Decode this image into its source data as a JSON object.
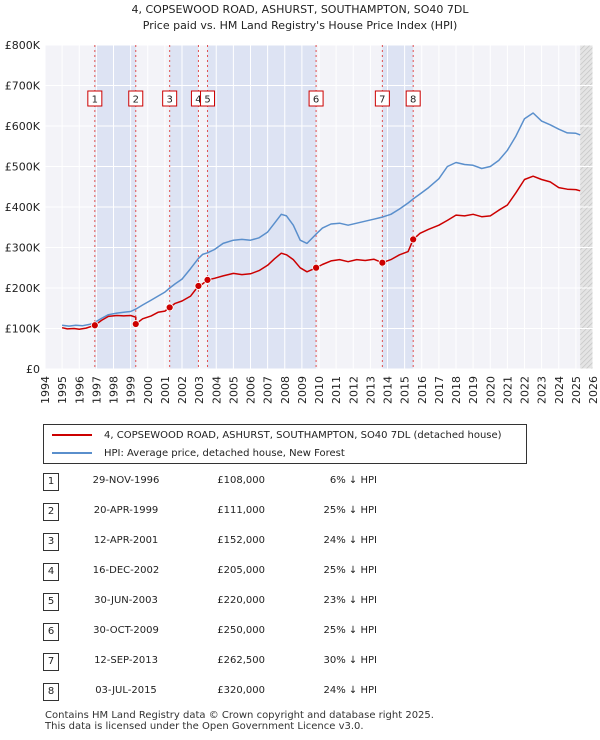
{
  "chart_data": {
    "type": "line",
    "title": "4, COPSEWOOD ROAD, ASHURST, SOUTHAMPTON, SO40 7DL",
    "subtitle": "Price paid vs. HM Land Registry's House Price Index (HPI)",
    "xlabel": "",
    "ylabel": "",
    "xlim": [
      1994,
      2026
    ],
    "ylim": [
      0,
      800000
    ],
    "x_ticks": [
      "1994",
      "1995",
      "1996",
      "1997",
      "1998",
      "1999",
      "2000",
      "2001",
      "2002",
      "2003",
      "2004",
      "2005",
      "2006",
      "2007",
      "2008",
      "2009",
      "2010",
      "2011",
      "2012",
      "2013",
      "2014",
      "2015",
      "2016",
      "2017",
      "2018",
      "2019",
      "2020",
      "2021",
      "2022",
      "2023",
      "2024",
      "2025",
      "2026"
    ],
    "y_ticks": [
      {
        "value": 0,
        "label": "£0"
      },
      {
        "value": 100000,
        "label": "£100K"
      },
      {
        "value": 200000,
        "label": "£200K"
      },
      {
        "value": 300000,
        "label": "£300K"
      },
      {
        "value": 400000,
        "label": "£400K"
      },
      {
        "value": 500000,
        "label": "£500K"
      },
      {
        "value": 600000,
        "label": "£600K"
      },
      {
        "value": 700000,
        "label": "£700K"
      },
      {
        "value": 800000,
        "label": "£800K"
      }
    ],
    "grid": true,
    "series": [
      {
        "name": "4, COPSEWOOD ROAD, ASHURST, SOUTHAMPTON, SO40 7DL (detached house)",
        "color": "#cc0000",
        "points": [
          [
            1995.0,
            102000
          ],
          [
            1995.3,
            99000
          ],
          [
            1995.7,
            100000
          ],
          [
            1996.0,
            98000
          ],
          [
            1996.4,
            101000
          ],
          [
            1996.91,
            108000
          ],
          [
            1997.3,
            120000
          ],
          [
            1997.7,
            130000
          ],
          [
            1998.2,
            132000
          ],
          [
            1998.6,
            131000
          ],
          [
            1999.0,
            132000
          ],
          [
            1999.3,
            128000
          ],
          [
            1999.3,
            111000
          ],
          [
            1999.7,
            124000
          ],
          [
            2000.2,
            131000
          ],
          [
            2000.6,
            140000
          ],
          [
            2001.0,
            143000
          ],
          [
            2001.28,
            152000
          ],
          [
            2001.6,
            162000
          ],
          [
            2002.0,
            168000
          ],
          [
            2002.5,
            180000
          ],
          [
            2002.96,
            205000
          ],
          [
            2003.2,
            210000
          ],
          [
            2003.49,
            220000
          ],
          [
            2003.9,
            224000
          ],
          [
            2004.4,
            230000
          ],
          [
            2005.0,
            236000
          ],
          [
            2005.5,
            233000
          ],
          [
            2006.0,
            235000
          ],
          [
            2006.5,
            243000
          ],
          [
            2007.0,
            256000
          ],
          [
            2007.4,
            272000
          ],
          [
            2007.8,
            286000
          ],
          [
            2008.1,
            282000
          ],
          [
            2008.5,
            270000
          ],
          [
            2008.9,
            250000
          ],
          [
            2009.3,
            240000
          ],
          [
            2009.83,
            250000
          ],
          [
            2010.2,
            258000
          ],
          [
            2010.7,
            267000
          ],
          [
            2011.2,
            270000
          ],
          [
            2011.7,
            265000
          ],
          [
            2012.2,
            270000
          ],
          [
            2012.7,
            268000
          ],
          [
            2013.2,
            271000
          ],
          [
            2013.7,
            262500
          ],
          [
            2014.2,
            270000
          ],
          [
            2014.7,
            282000
          ],
          [
            2015.2,
            290000
          ],
          [
            2015.5,
            320000
          ],
          [
            2015.9,
            335000
          ],
          [
            2016.4,
            345000
          ],
          [
            2017.0,
            355000
          ],
          [
            2017.5,
            367000
          ],
          [
            2018.0,
            380000
          ],
          [
            2018.5,
            378000
          ],
          [
            2019.0,
            382000
          ],
          [
            2019.5,
            376000
          ],
          [
            2020.0,
            378000
          ],
          [
            2020.5,
            392000
          ],
          [
            2021.0,
            405000
          ],
          [
            2021.5,
            435000
          ],
          [
            2022.0,
            468000
          ],
          [
            2022.5,
            476000
          ],
          [
            2023.0,
            468000
          ],
          [
            2023.5,
            462000
          ],
          [
            2024.0,
            448000
          ],
          [
            2024.5,
            444000
          ],
          [
            2025.0,
            443000
          ],
          [
            2025.25,
            440000
          ]
        ]
      },
      {
        "name": "HPI: Average price, detached house, New Forest",
        "color": "#5a8fcc",
        "points": [
          [
            1995.0,
            108000
          ],
          [
            1995.4,
            106000
          ],
          [
            1995.8,
            108000
          ],
          [
            1996.2,
            107000
          ],
          [
            1996.6,
            110000
          ],
          [
            1996.91,
            115000
          ],
          [
            1997.3,
            125000
          ],
          [
            1997.7,
            134000
          ],
          [
            1998.2,
            138000
          ],
          [
            1998.6,
            140000
          ],
          [
            1999.0,
            142000
          ],
          [
            1999.3,
            148000
          ],
          [
            1999.7,
            158000
          ],
          [
            2000.2,
            170000
          ],
          [
            2000.6,
            180000
          ],
          [
            2001.0,
            190000
          ],
          [
            2001.28,
            200000
          ],
          [
            2001.6,
            210000
          ],
          [
            2002.0,
            222000
          ],
          [
            2002.5,
            248000
          ],
          [
            2002.96,
            273000
          ],
          [
            2003.2,
            283000
          ],
          [
            2003.49,
            287000
          ],
          [
            2003.9,
            295000
          ],
          [
            2004.4,
            310000
          ],
          [
            2005.0,
            318000
          ],
          [
            2005.5,
            320000
          ],
          [
            2006.0,
            318000
          ],
          [
            2006.5,
            324000
          ],
          [
            2007.0,
            338000
          ],
          [
            2007.4,
            360000
          ],
          [
            2007.8,
            382000
          ],
          [
            2008.1,
            378000
          ],
          [
            2008.5,
            355000
          ],
          [
            2008.9,
            318000
          ],
          [
            2009.3,
            310000
          ],
          [
            2009.83,
            333000
          ],
          [
            2010.2,
            348000
          ],
          [
            2010.7,
            358000
          ],
          [
            2011.2,
            360000
          ],
          [
            2011.7,
            355000
          ],
          [
            2012.2,
            360000
          ],
          [
            2012.7,
            365000
          ],
          [
            2013.2,
            370000
          ],
          [
            2013.7,
            375000
          ],
          [
            2014.2,
            382000
          ],
          [
            2014.7,
            395000
          ],
          [
            2015.2,
            410000
          ],
          [
            2015.5,
            420000
          ],
          [
            2015.9,
            432000
          ],
          [
            2016.4,
            448000
          ],
          [
            2017.0,
            470000
          ],
          [
            2017.5,
            500000
          ],
          [
            2018.0,
            510000
          ],
          [
            2018.5,
            505000
          ],
          [
            2019.0,
            503000
          ],
          [
            2019.5,
            495000
          ],
          [
            2020.0,
            500000
          ],
          [
            2020.5,
            515000
          ],
          [
            2021.0,
            540000
          ],
          [
            2021.5,
            575000
          ],
          [
            2022.0,
            618000
          ],
          [
            2022.5,
            632000
          ],
          [
            2023.0,
            612000
          ],
          [
            2023.5,
            603000
          ],
          [
            2024.0,
            592000
          ],
          [
            2024.5,
            583000
          ],
          [
            2025.0,
            582000
          ],
          [
            2025.25,
            578000
          ]
        ]
      }
    ],
    "sales": [
      {
        "label": "1",
        "year": 1996.91,
        "price": 108000
      },
      {
        "label": "2",
        "year": 1999.3,
        "price": 111000
      },
      {
        "label": "3",
        "year": 2001.28,
        "price": 152000
      },
      {
        "label": "4",
        "year": 2002.96,
        "price": 205000
      },
      {
        "label": "5",
        "year": 2003.49,
        "price": 220000
      },
      {
        "label": "6",
        "year": 2009.83,
        "price": 250000
      },
      {
        "label": "7",
        "year": 2013.7,
        "price": 262500
      },
      {
        "label": "8",
        "year": 2015.5,
        "price": 320000
      }
    ],
    "shaded_periods": [
      [
        1996.91,
        1999.3
      ],
      [
        2001.28,
        2002.96
      ],
      [
        2003.49,
        2009.83
      ],
      [
        2013.7,
        2015.5
      ]
    ],
    "forecast_start": 2025.25
  },
  "legend": {
    "property_label": "4, COPSEWOOD ROAD, ASHURST, SOUTHAMPTON, SO40 7DL (detached house)",
    "hpi_label": "HPI: Average price, detached house, New Forest",
    "property_color": "#cc0000",
    "hpi_color": "#5a8fcc"
  },
  "transactions": [
    {
      "num": "1",
      "date": "29-NOV-1996",
      "price": "£108,000",
      "hpi": "6% ↓ HPI"
    },
    {
      "num": "2",
      "date": "20-APR-1999",
      "price": "£111,000",
      "hpi": "25% ↓ HPI"
    },
    {
      "num": "3",
      "date": "12-APR-2001",
      "price": "£152,000",
      "hpi": "24% ↓ HPI"
    },
    {
      "num": "4",
      "date": "16-DEC-2002",
      "price": "£205,000",
      "hpi": "25% ↓ HPI"
    },
    {
      "num": "5",
      "date": "30-JUN-2003",
      "price": "£220,000",
      "hpi": "23% ↓ HPI"
    },
    {
      "num": "6",
      "date": "30-OCT-2009",
      "price": "£250,000",
      "hpi": "25% ↓ HPI"
    },
    {
      "num": "7",
      "date": "12-SEP-2013",
      "price": "£262,500",
      "hpi": "30% ↓ HPI"
    },
    {
      "num": "8",
      "date": "03-JUL-2015",
      "price": "£320,000",
      "hpi": "24% ↓ HPI"
    }
  ],
  "footer": {
    "line1": "Contains HM Land Registry data © Crown copyright and database right 2025.",
    "line2": "This data is licensed under the Open Government Licence v3.0."
  }
}
